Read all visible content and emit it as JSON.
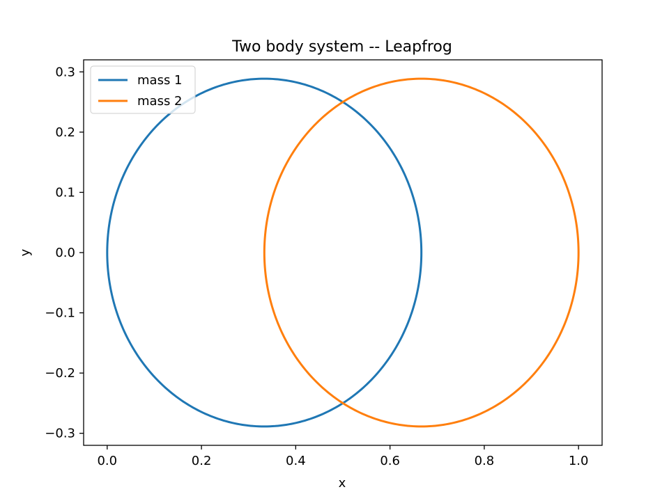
{
  "chart_data": {
    "type": "line",
    "title": "Two body system -- Leapfrog",
    "xlabel": "x",
    "ylabel": "y",
    "xlim": [
      -0.05,
      1.05
    ],
    "ylim": [
      -0.32,
      0.32
    ],
    "xticks": [
      0.0,
      0.2,
      0.4,
      0.6,
      0.8,
      1.0
    ],
    "xtick_labels": [
      "0.0",
      "0.2",
      "0.4",
      "0.6",
      "0.8",
      "1.0"
    ],
    "yticks": [
      -0.3,
      -0.2,
      -0.1,
      0.0,
      0.1,
      0.2,
      0.3
    ],
    "ytick_labels": [
      "−0.3",
      "−0.2",
      "−0.1",
      "0.0",
      "0.1",
      "0.2",
      "0.3"
    ],
    "grid": false,
    "legend_position": "upper left",
    "series": [
      {
        "name": "mass 1",
        "color": "#1f77b4",
        "shape": "ellipse",
        "center": [
          0.3333,
          0.0
        ],
        "x_semi_axis": 0.3333,
        "y_semi_axis": 0.2887
      },
      {
        "name": "mass 2",
        "color": "#ff7f0e",
        "shape": "ellipse",
        "center": [
          0.6667,
          0.0
        ],
        "x_semi_axis": 0.3333,
        "y_semi_axis": 0.2887
      }
    ]
  }
}
